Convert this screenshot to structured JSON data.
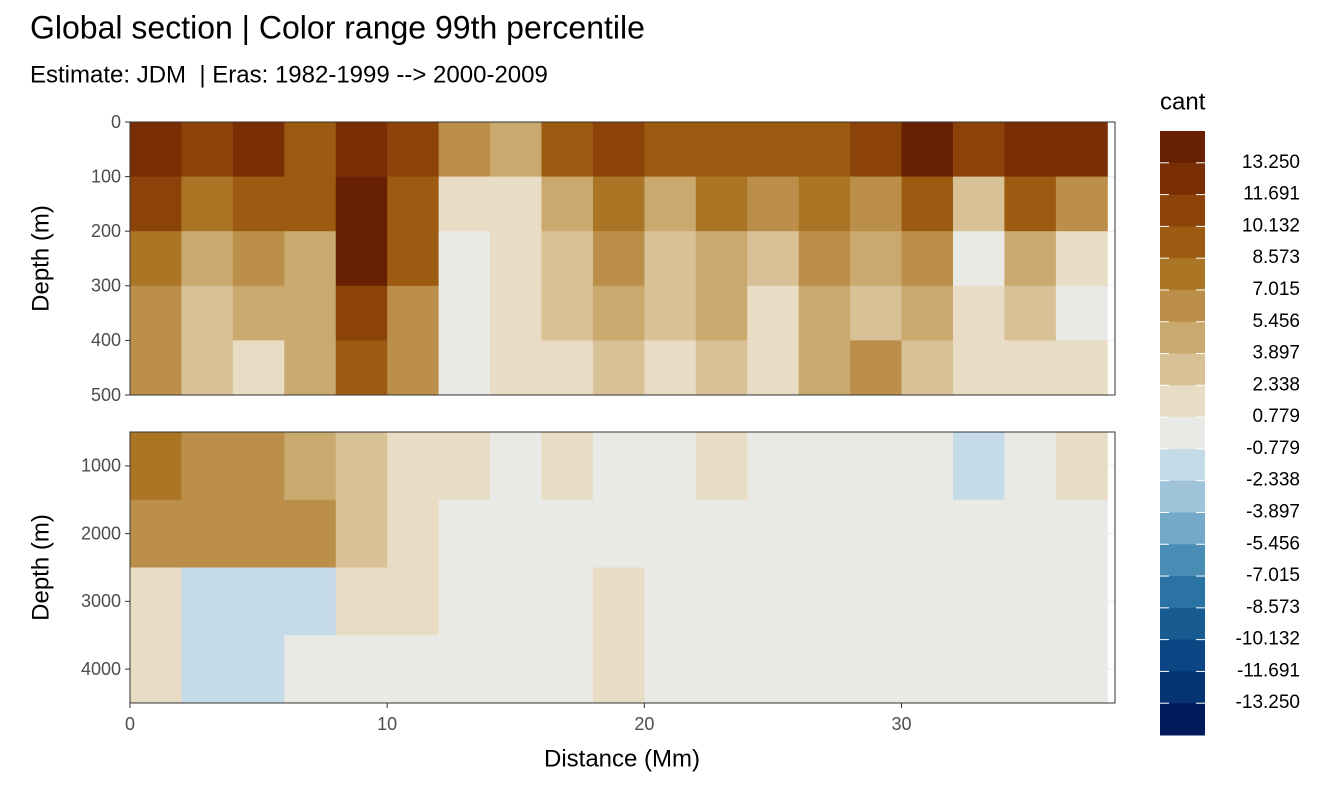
{
  "chart_data": {
    "type": "contour",
    "title": "Global section | Color range 99th percentile",
    "subtitle": "Estimate: JDM  | Eras: 1982-1999 --> 2000-2009",
    "xlabel": "Distance (Mm)",
    "xlim": [
      0,
      38.3
    ],
    "xticks": [
      0,
      10,
      20,
      30
    ],
    "grid": true,
    "x": [
      1,
      3,
      5,
      7,
      9,
      11,
      13,
      15,
      17,
      19,
      21,
      23,
      25,
      27,
      29,
      31,
      33,
      35,
      37
    ],
    "legend": {
      "title": "cant",
      "levels": [
        {
          "value": 13.25,
          "label": "13.250"
        },
        11.691,
        10.132,
        8.573,
        7.015,
        5.456,
        3.897,
        2.338,
        0.779,
        -0.779,
        -2.338,
        -3.897,
        -5.456,
        -7.015,
        -8.573,
        -10.132,
        -11.691,
        {
          "value": -13.25,
          "label": "-13.250"
        }
      ],
      "colors": [
        "#682002",
        "#7a2e05",
        "#8b4309",
        "#9c5b10",
        "#ab7526",
        "#bb8f49",
        "#c9a96e",
        "#d8c196",
        "#e8dcc4",
        "#e9e9e6",
        "#c6dbe8",
        "#9fc4da",
        "#74a9c7",
        "#4a8db4",
        "#2b73a2",
        "#175b91",
        "#0c4583",
        "#063372",
        "#021b5b"
      ]
    },
    "panels": [
      {
        "ylabel": "Depth (m)",
        "ylim": [
          0,
          500
        ],
        "yticks": [
          0,
          100,
          200,
          300,
          400,
          500
        ],
        "depths": [
          50,
          150,
          250,
          350,
          450
        ],
        "values": [
          [
            12,
            11,
            12,
            10,
            13,
            11,
            6,
            5,
            10,
            11,
            9,
            10,
            9,
            10,
            11,
            14,
            11,
            12,
            13
          ],
          [
            11,
            8,
            9,
            9,
            14,
            10,
            1,
            1,
            4,
            8,
            5,
            8,
            6,
            8,
            7,
            9,
            3,
            9,
            7
          ],
          [
            8,
            5,
            7,
            5,
            14,
            9,
            0,
            2,
            3,
            6,
            3,
            5,
            3,
            6,
            4,
            7,
            0,
            5,
            1
          ],
          [
            6,
            3,
            4,
            5,
            11,
            7,
            0,
            2,
            3,
            4,
            3,
            4,
            2,
            4,
            3,
            5,
            2,
            3,
            0
          ],
          [
            6,
            3,
            2,
            4,
            10,
            6,
            0,
            1,
            2,
            3,
            2,
            3,
            2,
            4,
            6,
            3,
            2,
            2,
            1
          ]
        ]
      },
      {
        "ylabel": "Depth (m)",
        "ylim": [
          500,
          4500
        ],
        "yticks": [
          1000,
          2000,
          3000,
          4000
        ],
        "depths": [
          1000,
          2000,
          3000,
          4000
        ],
        "values": [
          [
            8,
            7,
            6,
            4,
            3,
            2,
            1,
            0,
            1,
            0,
            0,
            1,
            0,
            0,
            0,
            0,
            -1,
            0,
            1
          ],
          [
            7,
            7,
            7,
            6,
            3,
            2,
            0,
            0,
            0,
            0,
            0,
            0,
            0,
            0,
            0,
            0,
            0,
            0,
            0
          ],
          [
            2,
            -1,
            -1,
            -1,
            1,
            1,
            0,
            0,
            0,
            1,
            0,
            0,
            0,
            0,
            0,
            0,
            0,
            0,
            0
          ],
          [
            1,
            -1,
            -1,
            0,
            0,
            0,
            0,
            0,
            0,
            1,
            0,
            0,
            0,
            0,
            0,
            0,
            0,
            0,
            0
          ]
        ]
      }
    ]
  }
}
